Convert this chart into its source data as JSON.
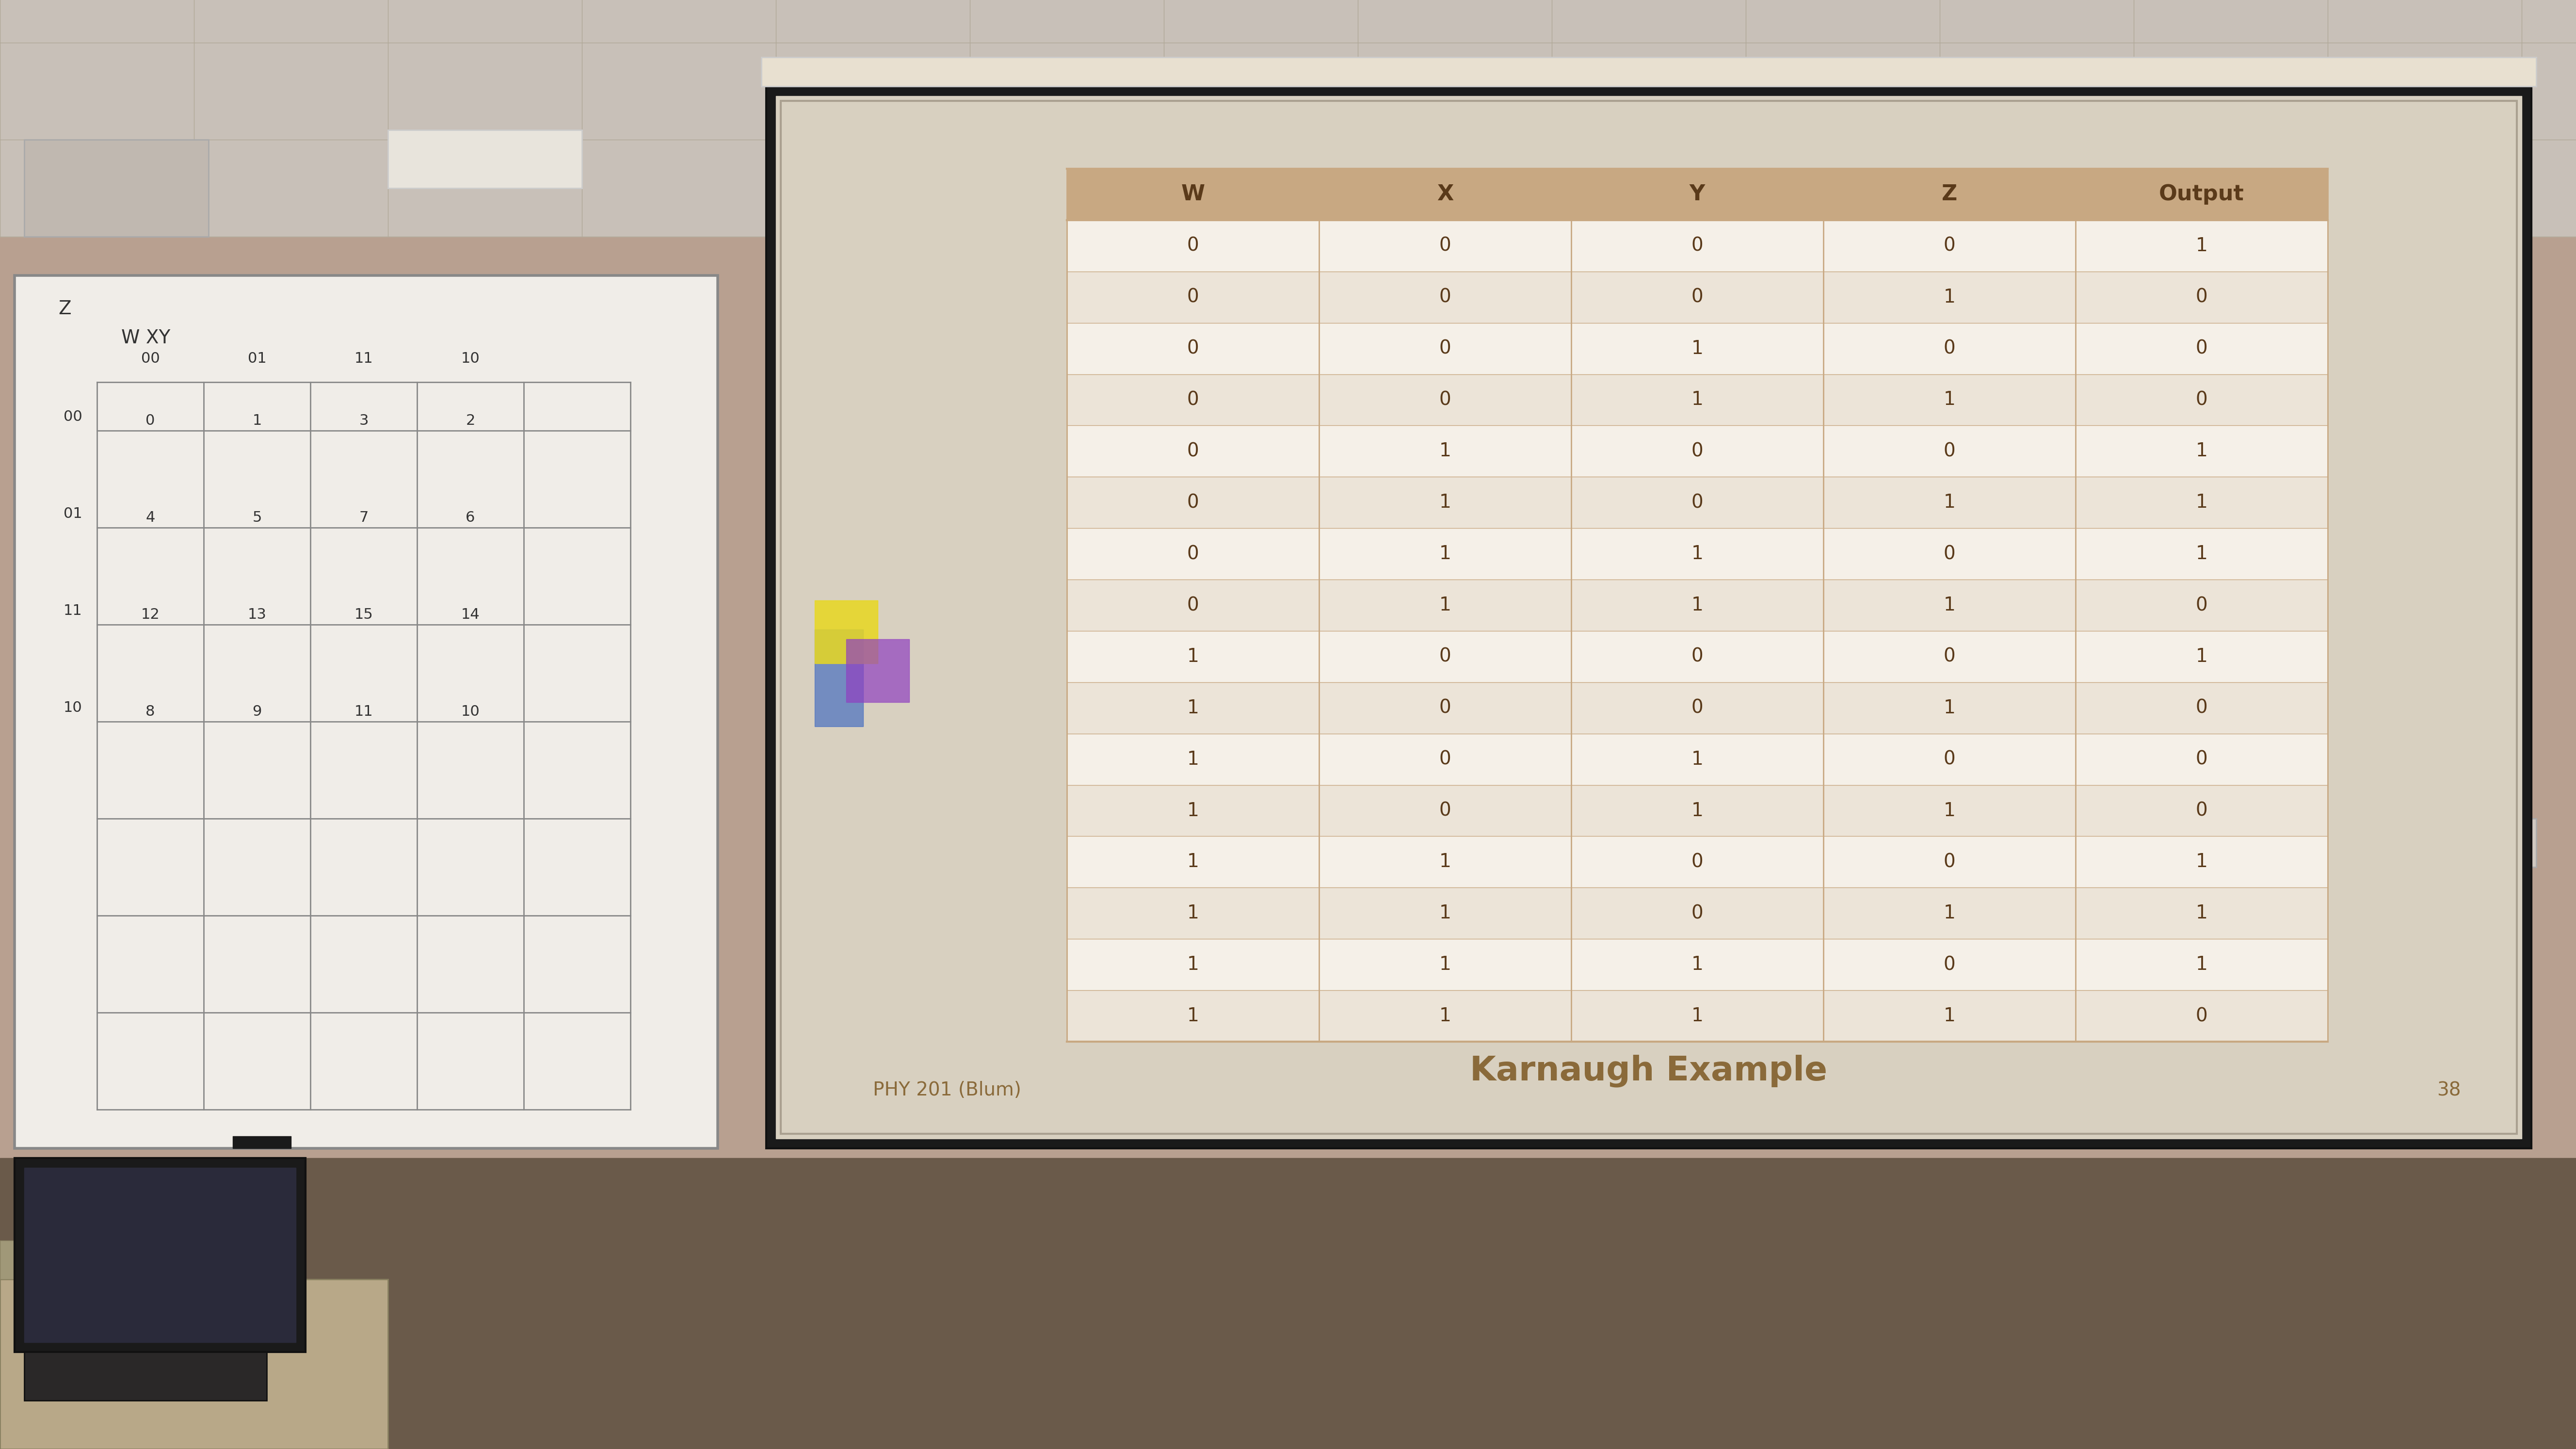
{
  "bg_color": "#7a5a4a",
  "wall_color": "#d4b8a0",
  "screen_bg": "#e8e0d0",
  "screen_border": "#1a1a1a",
  "table_header_bg": "#c8a882",
  "table_row_alt1": "#f0ece4",
  "table_row_alt2": "#e8ddd0",
  "table_border_color": "#c8a882",
  "title": "Karnaugh Example",
  "subtitle": "PHY 201 (Blum)",
  "slide_number": "38",
  "headers": [
    "W",
    "X",
    "Y",
    "Z",
    "Output"
  ],
  "rows": [
    [
      0,
      0,
      0,
      0,
      1
    ],
    [
      0,
      0,
      0,
      1,
      0
    ],
    [
      0,
      0,
      1,
      0,
      0
    ],
    [
      0,
      0,
      1,
      1,
      0
    ],
    [
      0,
      1,
      0,
      0,
      1
    ],
    [
      0,
      1,
      0,
      1,
      1
    ],
    [
      0,
      1,
      1,
      0,
      1
    ],
    [
      0,
      1,
      1,
      1,
      0
    ],
    [
      1,
      0,
      0,
      0,
      1
    ],
    [
      1,
      0,
      0,
      1,
      0
    ],
    [
      1,
      0,
      1,
      0,
      0
    ],
    [
      1,
      0,
      1,
      1,
      0
    ],
    [
      1,
      1,
      0,
      0,
      1
    ],
    [
      1,
      1,
      0,
      1,
      1
    ],
    [
      1,
      1,
      1,
      0,
      1
    ],
    [
      1,
      1,
      1,
      1,
      0
    ]
  ],
  "whiteboard_color": "#f5f5f0",
  "ceiling_color": "#d8cfc8",
  "floor_color": "#5a4a3a"
}
